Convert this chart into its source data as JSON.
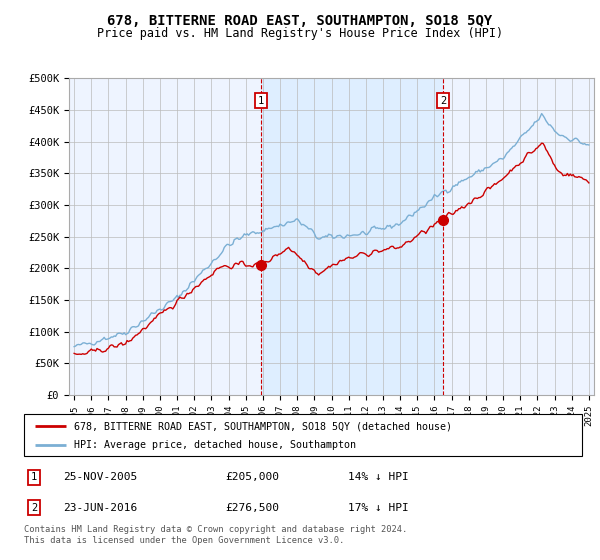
{
  "title": "678, BITTERNE ROAD EAST, SOUTHAMPTON, SO18 5QY",
  "subtitle": "Price paid vs. HM Land Registry's House Price Index (HPI)",
  "hpi_label": "HPI: Average price, detached house, Southampton",
  "price_label": "678, BITTERNE ROAD EAST, SOUTHAMPTON, SO18 5QY (detached house)",
  "annotation1": {
    "num": "1",
    "date": "25-NOV-2005",
    "price": "£205,000",
    "note": "14% ↓ HPI"
  },
  "annotation2": {
    "num": "2",
    "date": "23-JUN-2016",
    "price": "£276,500",
    "note": "17% ↓ HPI"
  },
  "footer": "Contains HM Land Registry data © Crown copyright and database right 2024.\nThis data is licensed under the Open Government Licence v3.0.",
  "price_color": "#cc0000",
  "hpi_color": "#7bafd4",
  "hpi_fill_color": "#ddeeff",
  "annotation_vline_color": "#cc0000",
  "plot_bg": "#eef4ff",
  "ylim": [
    0,
    500000
  ],
  "yticks": [
    0,
    50000,
    100000,
    150000,
    200000,
    250000,
    300000,
    350000,
    400000,
    450000,
    500000
  ],
  "sale1_year": 2005.9,
  "sale2_year": 2016.5,
  "sale1_price": 205000,
  "sale2_price": 276500
}
